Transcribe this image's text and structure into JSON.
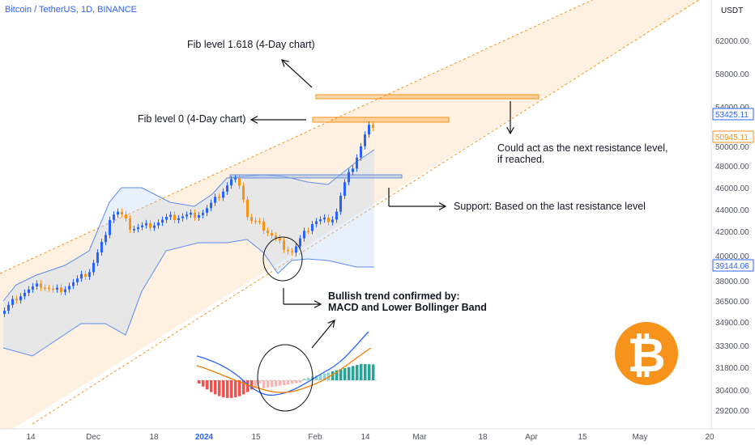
{
  "header": {
    "symbol_line": "Bitcoin / TetherUS, 1D, BINANCE"
  },
  "chart_data": {
    "type": "candlestick",
    "currency_label": "USDT",
    "y_ticks": [
      62000,
      58000,
      54000,
      50000,
      48000,
      46000,
      44000,
      42000,
      40000,
      38000,
      36500,
      34900,
      33300,
      31800,
      30400,
      29200
    ],
    "y_tick_labels": [
      "62000.00",
      "58000.00",
      "54000.00",
      "50000.00",
      "48000.00",
      "46000.00",
      "44000.00",
      "42000.00",
      "40000.00",
      "38000.00",
      "36500.00",
      "34900.00",
      "33300.00",
      "31800.00",
      "30400.00",
      "29200.00"
    ],
    "x_tick_labels": [
      "14",
      "Dec",
      "18",
      "2024",
      "15",
      "Feb",
      "14",
      "Mar",
      "18",
      "Apr",
      "15",
      "May",
      "20"
    ],
    "price_tags": [
      {
        "value": "53425.11",
        "color": "#2962ff"
      },
      {
        "value": "50945.11",
        "color": "#f7931a"
      },
      {
        "value": "39144.06",
        "color": "#2962ff"
      }
    ],
    "annotations": {
      "fib_1618": "Fib level 1.618 (4-Day chart)",
      "fib_0": "Fib level 0 (4-Day chart)",
      "resistance_line1": "Could act as the next resistance level,",
      "resistance_line2": "if reached.",
      "support": "Support: Based on the last resistance level",
      "bullish_line1": "Bullish trend confirmed by:",
      "bullish_line2": "MACD and Lower Bollinger Band"
    },
    "logo": {
      "glyph": "₿",
      "color": "#f7931a"
    },
    "colors": {
      "up": "#2962ff",
      "down": "#f7931a",
      "channel": "#f7931a",
      "band": "#5b8def"
    }
  }
}
